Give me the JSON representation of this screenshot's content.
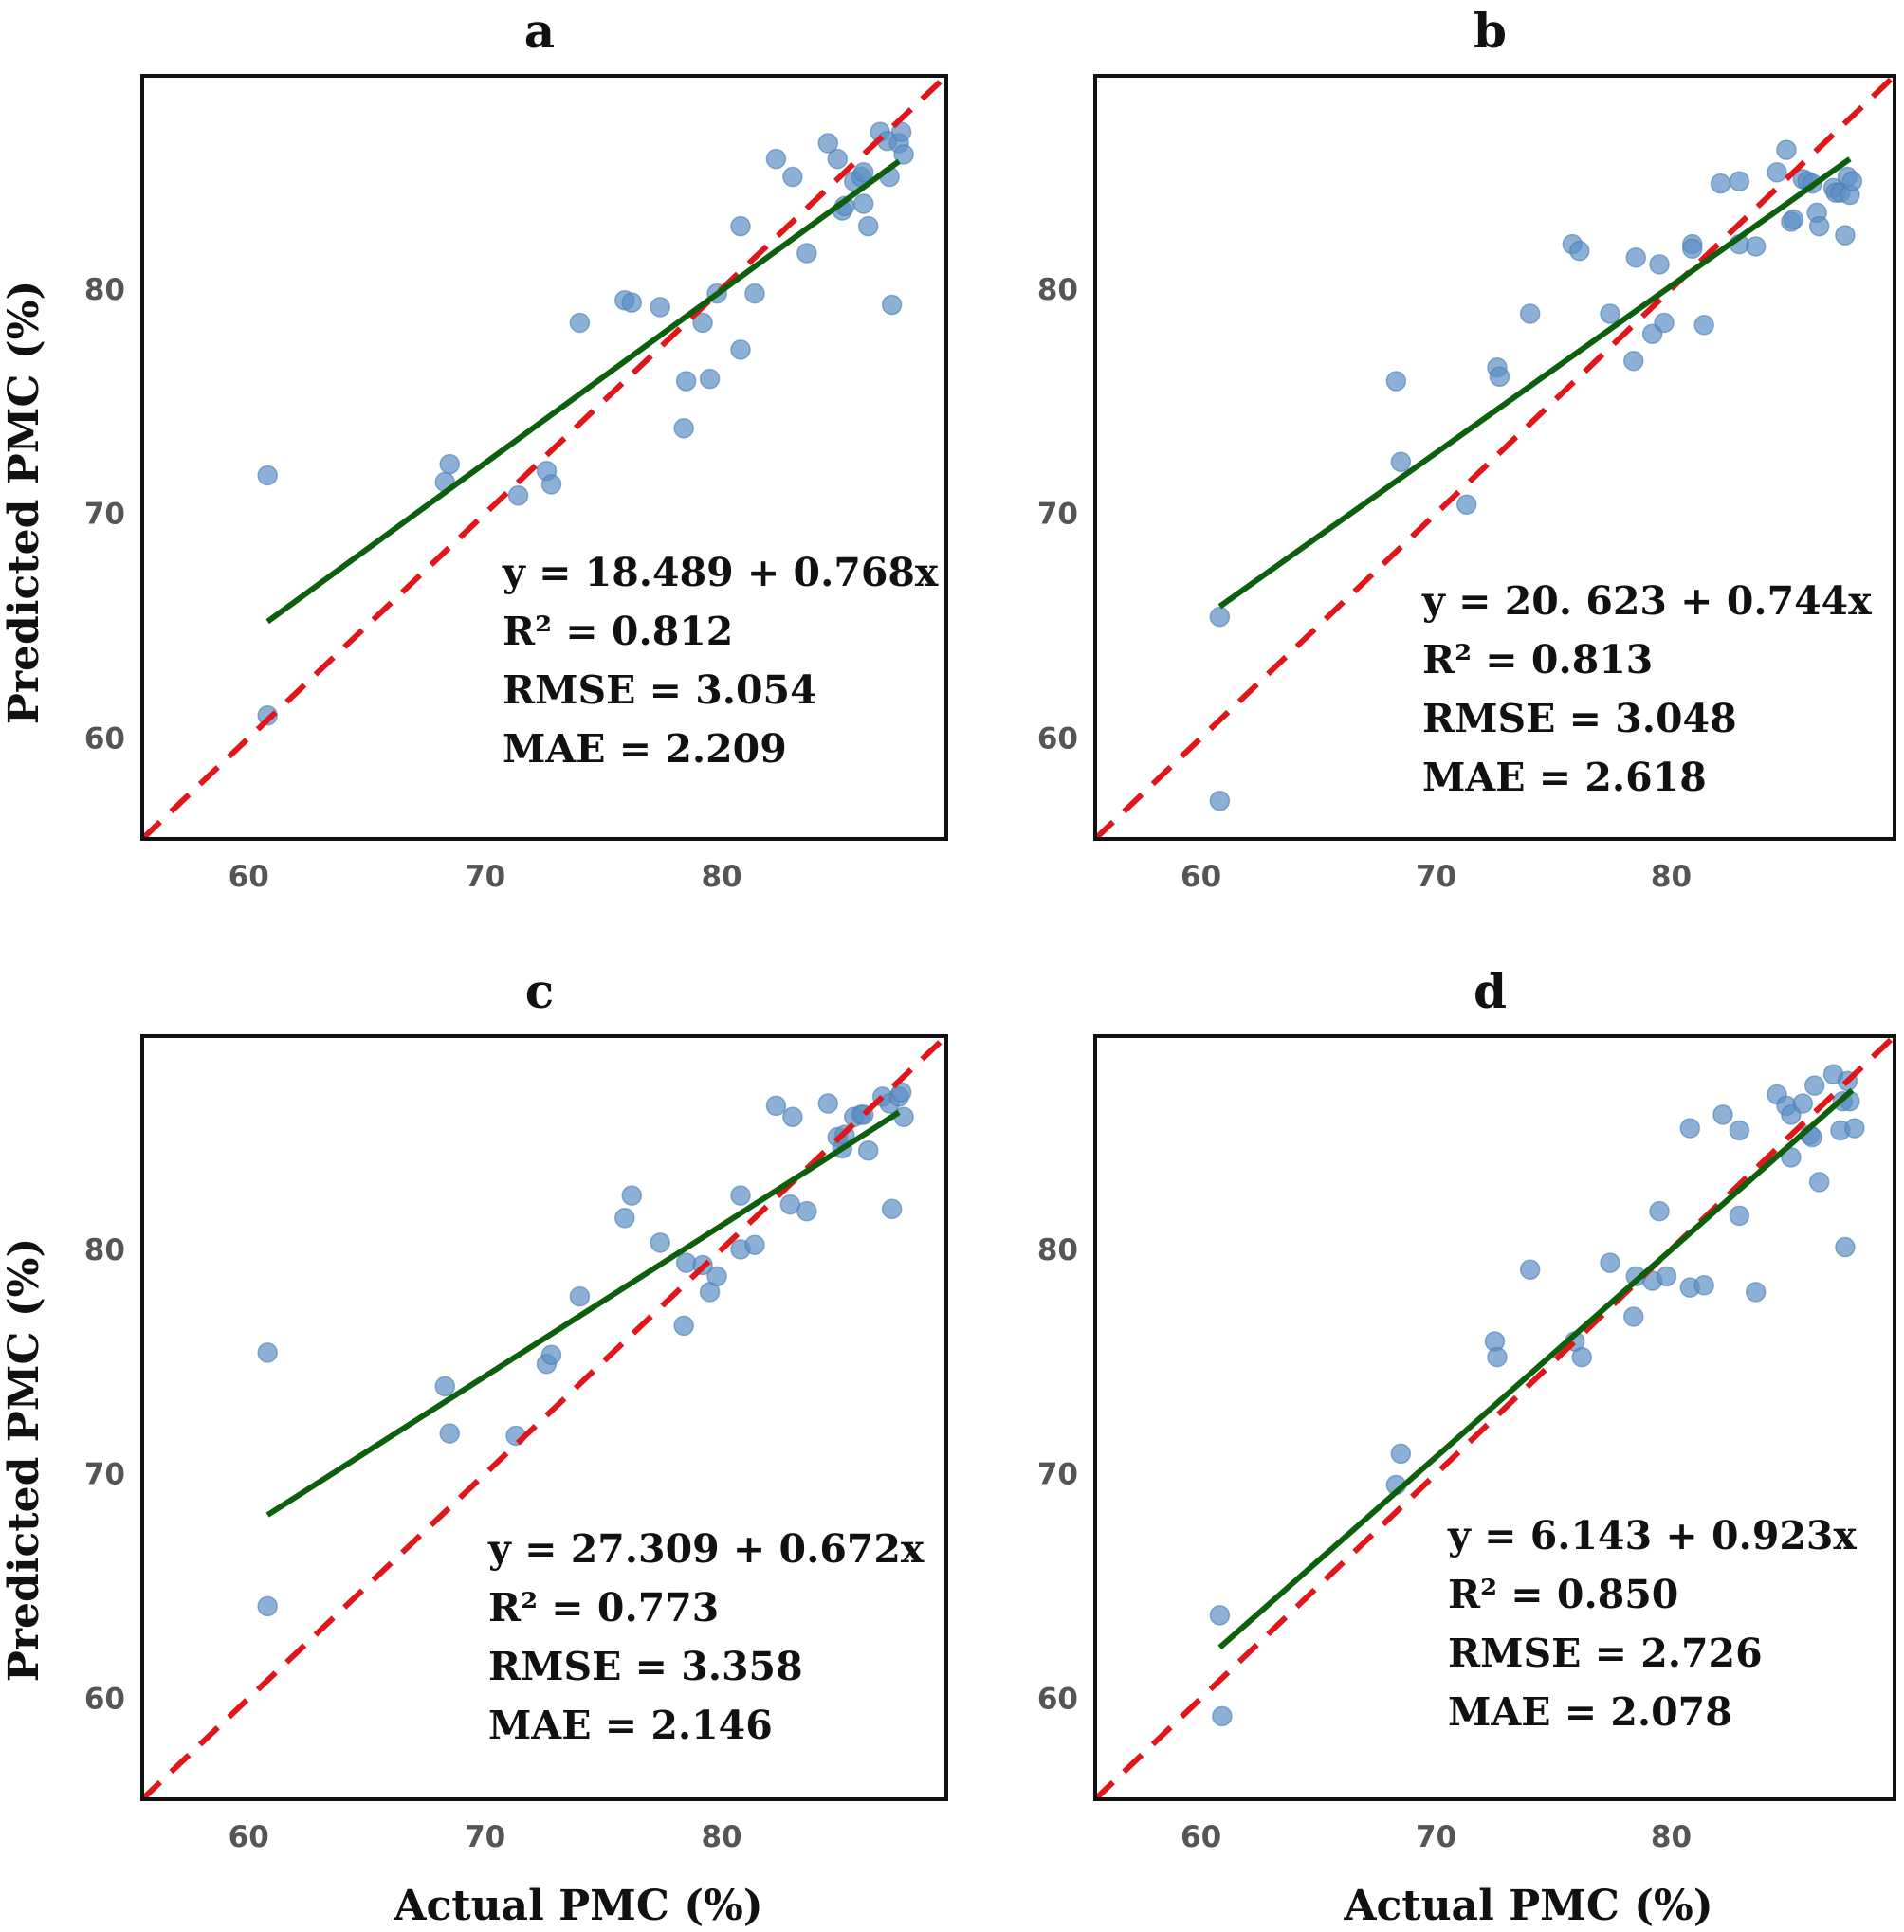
{
  "figure": {
    "xlabel": "Actual PMC (%)",
    "ylabel": "Predicted PMC (%)"
  },
  "chart_data": [
    {
      "type": "scatter",
      "title": "a",
      "xlim": [
        55.5,
        89.5
      ],
      "ylim": [
        55.5,
        89.5
      ],
      "xticks": [
        60,
        70,
        80
      ],
      "yticks": [
        60,
        70,
        80
      ],
      "fit": {
        "intercept": 18.489,
        "slope": 0.768,
        "x_range": [
          60.8,
          87.5
        ]
      },
      "identity_line": true,
      "stats": [
        "y = 18.489 + 0.768x",
        "R² = 0.812",
        "RMSE = 3.054",
        "MAE = 2.209"
      ],
      "points": [
        [
          60.8,
          71.7
        ],
        [
          60.8,
          61.0
        ],
        [
          68.3,
          71.4
        ],
        [
          68.5,
          72.2
        ],
        [
          71.4,
          70.8
        ],
        [
          72.6,
          71.9
        ],
        [
          72.8,
          71.3
        ],
        [
          74.0,
          78.5
        ],
        [
          75.9,
          79.5
        ],
        [
          76.2,
          79.4
        ],
        [
          77.4,
          79.2
        ],
        [
          78.4,
          73.8
        ],
        [
          78.5,
          75.9
        ],
        [
          79.2,
          78.5
        ],
        [
          79.5,
          76.0
        ],
        [
          79.8,
          79.8
        ],
        [
          80.8,
          82.8
        ],
        [
          80.8,
          77.3
        ],
        [
          81.4,
          79.8
        ],
        [
          82.3,
          85.8
        ],
        [
          83.0,
          85.0
        ],
        [
          83.6,
          81.6
        ],
        [
          84.5,
          86.5
        ],
        [
          84.9,
          85.8
        ],
        [
          85.1,
          83.5
        ],
        [
          85.2,
          83.7
        ],
        [
          85.6,
          84.8
        ],
        [
          85.9,
          85.0
        ],
        [
          86.0,
          85.2
        ],
        [
          86.0,
          83.8
        ],
        [
          86.2,
          82.8
        ],
        [
          86.7,
          87.0
        ],
        [
          87.0,
          86.6
        ],
        [
          87.1,
          85.0
        ],
        [
          87.2,
          79.3
        ],
        [
          87.5,
          86.5
        ],
        [
          87.6,
          87.0
        ],
        [
          87.7,
          86.0
        ]
      ]
    },
    {
      "type": "scatter",
      "title": "b",
      "xlim": [
        55.5,
        89.5
      ],
      "ylim": [
        55.5,
        89.5
      ],
      "xticks": [
        60,
        70,
        80
      ],
      "yticks": [
        60,
        70,
        80
      ],
      "fit": {
        "intercept": 20.623,
        "slope": 0.744,
        "x_range": [
          60.8,
          87.6
        ]
      },
      "identity_line": true,
      "stats": [
        "y = 20. 623 + 0.744x",
        "R² = 0.813",
        "RMSE = 3.048",
        "MAE = 2.618"
      ],
      "points": [
        [
          60.8,
          65.4
        ],
        [
          60.8,
          57.2
        ],
        [
          68.3,
          75.9
        ],
        [
          68.5,
          72.3
        ],
        [
          71.3,
          70.4
        ],
        [
          72.6,
          76.5
        ],
        [
          72.7,
          76.1
        ],
        [
          74.0,
          78.9
        ],
        [
          75.8,
          82.0
        ],
        [
          76.1,
          81.7
        ],
        [
          77.4,
          78.9
        ],
        [
          78.4,
          76.8
        ],
        [
          78.5,
          81.4
        ],
        [
          79.2,
          78.0
        ],
        [
          79.5,
          81.1
        ],
        [
          79.7,
          78.5
        ],
        [
          80.9,
          82.0
        ],
        [
          80.9,
          81.8
        ],
        [
          81.4,
          78.4
        ],
        [
          82.1,
          84.7
        ],
        [
          82.9,
          82.0
        ],
        [
          82.9,
          84.8
        ],
        [
          83.6,
          81.9
        ],
        [
          84.5,
          85.2
        ],
        [
          84.9,
          86.2
        ],
        [
          85.1,
          83.0
        ],
        [
          85.2,
          83.1
        ],
        [
          85.6,
          84.9
        ],
        [
          85.8,
          84.8
        ],
        [
          86.0,
          84.7
        ],
        [
          86.2,
          83.4
        ],
        [
          86.3,
          82.8
        ],
        [
          86.9,
          84.5
        ],
        [
          87.0,
          84.3
        ],
        [
          87.2,
          84.3
        ],
        [
          87.4,
          82.4
        ],
        [
          87.5,
          85.0
        ],
        [
          87.6,
          84.2
        ],
        [
          87.7,
          84.8
        ]
      ]
    },
    {
      "type": "scatter",
      "title": "c",
      "xlim": [
        55.5,
        89.5
      ],
      "ylim": [
        55.5,
        89.5
      ],
      "xticks": [
        60,
        70,
        80
      ],
      "yticks": [
        60,
        70,
        80
      ],
      "fit": {
        "intercept": 27.309,
        "slope": 0.672,
        "x_range": [
          60.8,
          87.5
        ]
      },
      "identity_line": true,
      "stats": [
        "y = 27.309 + 0.672x",
        "R² = 0.773",
        "RMSE = 3.358",
        "MAE = 2.146"
      ],
      "points": [
        [
          60.8,
          75.4
        ],
        [
          60.8,
          64.1
        ],
        [
          68.3,
          73.9
        ],
        [
          68.5,
          71.8
        ],
        [
          71.3,
          71.7
        ],
        [
          72.6,
          74.9
        ],
        [
          72.8,
          75.3
        ],
        [
          74.0,
          77.9
        ],
        [
          75.9,
          81.4
        ],
        [
          76.2,
          82.4
        ],
        [
          77.4,
          80.3
        ],
        [
          78.4,
          76.6
        ],
        [
          78.5,
          79.4
        ],
        [
          79.2,
          79.3
        ],
        [
          79.5,
          78.1
        ],
        [
          79.8,
          78.8
        ],
        [
          80.8,
          80.0
        ],
        [
          80.8,
          82.4
        ],
        [
          81.4,
          80.2
        ],
        [
          82.3,
          86.4
        ],
        [
          82.9,
          82.0
        ],
        [
          83.0,
          85.9
        ],
        [
          83.6,
          81.7
        ],
        [
          84.5,
          86.5
        ],
        [
          84.9,
          85.0
        ],
        [
          85.1,
          84.5
        ],
        [
          85.2,
          85.1
        ],
        [
          85.6,
          85.9
        ],
        [
          85.9,
          86.0
        ],
        [
          86.0,
          86.0
        ],
        [
          86.2,
          84.4
        ],
        [
          86.8,
          86.8
        ],
        [
          87.1,
          86.5
        ],
        [
          87.2,
          81.8
        ],
        [
          87.5,
          86.8
        ],
        [
          87.6,
          87.0
        ],
        [
          87.7,
          85.9
        ]
      ]
    },
    {
      "type": "scatter",
      "title": "d",
      "xlim": [
        55.5,
        89.5
      ],
      "ylim": [
        55.5,
        89.5
      ],
      "xticks": [
        60,
        70,
        80
      ],
      "yticks": [
        60,
        70,
        80
      ],
      "fit": {
        "intercept": 6.143,
        "slope": 0.923,
        "x_range": [
          60.8,
          87.7
        ]
      },
      "identity_line": true,
      "stats": [
        "y = 6.143 + 0.923x",
        "R² = 0.850",
        "RMSE = 2.726",
        "MAE = 2.078"
      ],
      "points": [
        [
          60.8,
          63.7
        ],
        [
          60.9,
          59.2
        ],
        [
          68.3,
          69.5
        ],
        [
          68.5,
          70.9
        ],
        [
          72.5,
          75.9
        ],
        [
          72.6,
          75.2
        ],
        [
          74.0,
          79.1
        ],
        [
          75.9,
          75.9
        ],
        [
          76.2,
          75.2
        ],
        [
          77.4,
          79.4
        ],
        [
          78.4,
          77.0
        ],
        [
          78.5,
          78.8
        ],
        [
          79.2,
          78.6
        ],
        [
          79.5,
          81.7
        ],
        [
          79.8,
          78.8
        ],
        [
          80.8,
          78.3
        ],
        [
          80.8,
          85.4
        ],
        [
          81.4,
          78.4
        ],
        [
          82.2,
          86.0
        ],
        [
          82.9,
          85.3
        ],
        [
          82.9,
          81.5
        ],
        [
          83.6,
          78.1
        ],
        [
          84.5,
          86.9
        ],
        [
          84.9,
          86.4
        ],
        [
          85.1,
          86.0
        ],
        [
          85.1,
          84.1
        ],
        [
          85.6,
          86.5
        ],
        [
          85.9,
          85.1
        ],
        [
          86.0,
          85.0
        ],
        [
          86.1,
          87.3
        ],
        [
          86.3,
          83.0
        ],
        [
          86.9,
          87.8
        ],
        [
          87.2,
          85.3
        ],
        [
          87.3,
          86.6
        ],
        [
          87.4,
          80.1
        ],
        [
          87.5,
          87.5
        ],
        [
          87.6,
          86.6
        ],
        [
          87.8,
          85.4
        ]
      ]
    }
  ]
}
